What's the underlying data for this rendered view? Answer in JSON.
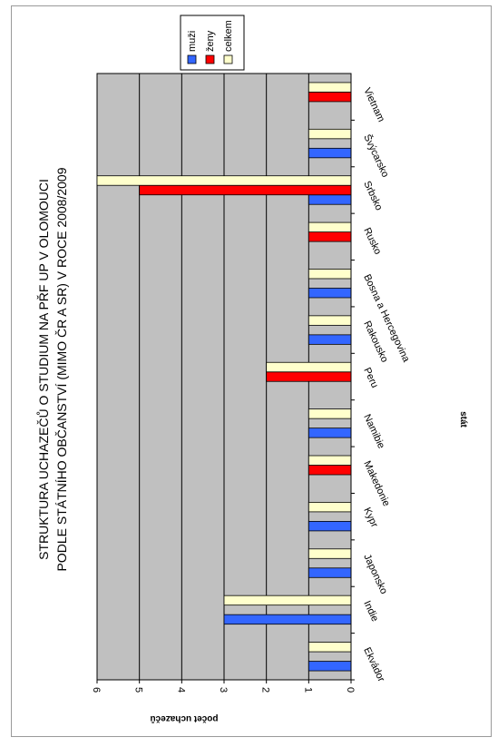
{
  "chart_data": {
    "type": "bar",
    "orientation": "rotated-90-clockwise",
    "title_line1": "STRUKTURA UCHAZEČŮ O STUDIUM NA PŘF UP V OLOMOUCI",
    "title_line2": "PODLE STÁTNÍHO OBČANSTVÍ (MIMO ČR A SR) V ROCE 2008/2009",
    "xlabel": "stát",
    "ylabel": "počet uchazečů",
    "ylim": [
      0,
      6
    ],
    "yticks": [
      "0",
      "1",
      "2",
      "3",
      "4",
      "5",
      "6"
    ],
    "grid": true,
    "legend_position": "top-right",
    "categories": [
      "Ekvádor",
      "Indie",
      "Japonsko",
      "Kypr",
      "Makedonie",
      "Namibie",
      "Peru",
      "Rakousko",
      "Bosna a Hercegovina",
      "Rusko",
      "Srbsko",
      "Švýcarsko",
      "Vietnam"
    ],
    "series": [
      {
        "name": "muži",
        "color": "#3366ff",
        "values": [
          1,
          3,
          1,
          1,
          0,
          1,
          0,
          1,
          1,
          0,
          1,
          1,
          0
        ]
      },
      {
        "name": "ženy",
        "color": "#ff0000",
        "values": [
          0,
          0,
          0,
          0,
          1,
          0,
          2,
          0,
          0,
          1,
          5,
          0,
          1
        ]
      },
      {
        "name": "celkem",
        "color": "#ffffcc",
        "values": [
          1,
          3,
          1,
          1,
          1,
          1,
          2,
          1,
          1,
          1,
          6,
          1,
          1
        ]
      }
    ],
    "plot_background": "#c0c0c0"
  }
}
